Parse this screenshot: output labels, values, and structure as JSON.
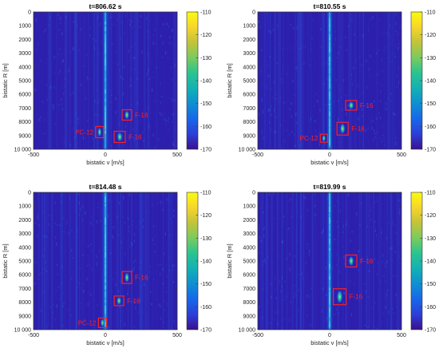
{
  "colors": {
    "colormap": [
      "#3b0f8f",
      "#2c3fd6",
      "#1766ea",
      "#0f8ed2",
      "#12b0b6",
      "#2cc48f",
      "#7ccb5c",
      "#c3c33a",
      "#f7d52b",
      "#f9fb0e"
    ],
    "background": "#2d1fae",
    "annotation": "#ff2020"
  },
  "chart_data": [
    {
      "type": "heatmap",
      "title": "t=806.62 s",
      "xlabel": "bistatic v [m/s]",
      "ylabel": "bistatic R [m]",
      "xlim": [
        -500,
        500
      ],
      "ylim": [
        0,
        10000
      ],
      "y_reversed": true,
      "xticks": [
        -500,
        0,
        500
      ],
      "yticks": [
        0,
        1000,
        2000,
        3000,
        4000,
        5000,
        6000,
        7000,
        8000,
        9000,
        10000
      ],
      "ytick_labels": [
        "0",
        "1000",
        "2000",
        "3000",
        "4000",
        "5000",
        "6000",
        "7000",
        "8000",
        "9000",
        "10 000"
      ],
      "colorbar": {
        "range": [
          -170,
          -110
        ],
        "ticks": [
          -110,
          -120,
          -130,
          -140,
          -150,
          -160,
          -170
        ]
      },
      "ridge_v": 0,
      "targets": [
        {
          "label": "PC-12",
          "v": -40,
          "R": 8750
        },
        {
          "label": "F-16",
          "v": 150,
          "R": 7500
        },
        {
          "label": "F-16",
          "v": 100,
          "R": 9100
        }
      ]
    },
    {
      "type": "heatmap",
      "title": "t=810.55 s",
      "xlabel": "bistatic v [m/s]",
      "ylabel": "bistatic R [m]",
      "xlim": [
        -500,
        500
      ],
      "ylim": [
        0,
        10000
      ],
      "y_reversed": true,
      "xticks": [
        -500,
        0,
        500
      ],
      "yticks": [
        0,
        1000,
        2000,
        3000,
        4000,
        5000,
        6000,
        7000,
        8000,
        9000,
        10000
      ],
      "ytick_labels": [
        "0",
        "1000",
        "2000",
        "3000",
        "4000",
        "5000",
        "6000",
        "7000",
        "8000",
        "9000",
        "10 000"
      ],
      "colorbar": {
        "range": [
          -170,
          -110
        ],
        "ticks": [
          -110,
          -120,
          -130,
          -140,
          -150,
          -160,
          -170
        ]
      },
      "ridge_v": 0,
      "targets": [
        {
          "label": "PC-12",
          "v": -40,
          "R": 9200
        },
        {
          "label": "F-16",
          "v": 150,
          "R": 6800
        },
        {
          "label": "F-16",
          "v": 90,
          "R": 8500
        }
      ]
    },
    {
      "type": "heatmap",
      "title": "t=814.48 s",
      "xlabel": "bistatic v [m/s]",
      "ylabel": "bistatic R [m]",
      "xlim": [
        -500,
        500
      ],
      "ylim": [
        0,
        10000
      ],
      "y_reversed": true,
      "xticks": [
        -500,
        0,
        500
      ],
      "yticks": [
        0,
        1000,
        2000,
        3000,
        4000,
        5000,
        6000,
        7000,
        8000,
        9000,
        10000
      ],
      "ytick_labels": [
        "0",
        "1000",
        "2000",
        "3000",
        "4000",
        "5000",
        "6000",
        "7000",
        "8000",
        "9000",
        "10 000"
      ],
      "colorbar": {
        "range": [
          -170,
          -110
        ],
        "ticks": [
          -110,
          -120,
          -130,
          -140,
          -150,
          -160,
          -170
        ]
      },
      "ridge_v": 0,
      "targets": [
        {
          "label": "PC-12",
          "v": -20,
          "R": 9500
        },
        {
          "label": "F-16",
          "v": 150,
          "R": 6200
        },
        {
          "label": "F-16",
          "v": 95,
          "R": 7900
        }
      ]
    },
    {
      "type": "heatmap",
      "title": "t=819.99 s",
      "xlabel": "bistatic v [m/s]",
      "ylabel": "bistatic R [m]",
      "xlim": [
        -500,
        500
      ],
      "ylim": [
        0,
        10000
      ],
      "y_reversed": true,
      "xticks": [
        -500,
        0,
        500
      ],
      "yticks": [
        0,
        1000,
        2000,
        3000,
        4000,
        5000,
        6000,
        7000,
        8000,
        9000,
        10000
      ],
      "ytick_labels": [
        "0",
        "1000",
        "2000",
        "3000",
        "4000",
        "5000",
        "6000",
        "7000",
        "8000",
        "9000",
        "10 000"
      ],
      "colorbar": {
        "range": [
          -170,
          -110
        ],
        "ticks": [
          -110,
          -120,
          -130,
          -140,
          -150,
          -160,
          -170
        ]
      },
      "ridge_v": 0,
      "targets": [
        {
          "label": "F-16",
          "v": 150,
          "R": 5000
        },
        {
          "label": "F-16",
          "v": 70,
          "R": 7600
        }
      ]
    }
  ]
}
